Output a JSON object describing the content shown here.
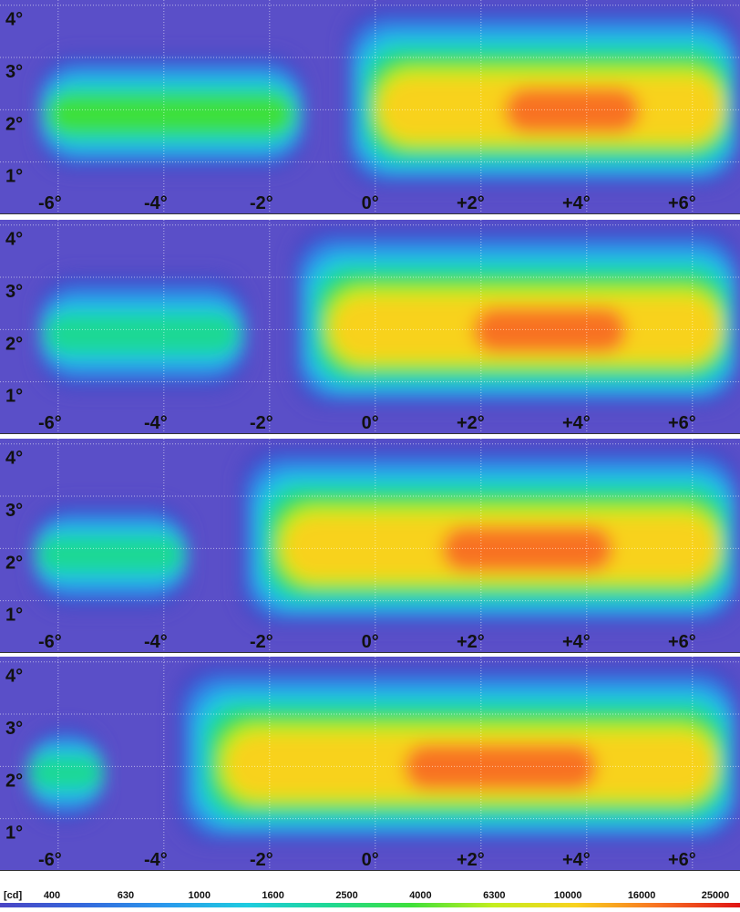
{
  "chart_data": [
    {
      "type": "heatmap",
      "xlim": [
        -7.1,
        6.9
      ],
      "ylim": [
        0,
        4.1
      ],
      "xticks": [
        {
          "value": -6,
          "label": "-6°"
        },
        {
          "value": -4,
          "label": "-4°"
        },
        {
          "value": -2,
          "label": "-2°"
        },
        {
          "value": 0,
          "label": "0°"
        },
        {
          "value": 2,
          "label": "+2°"
        },
        {
          "value": 4,
          "label": "+4°"
        },
        {
          "value": 6,
          "label": "+6°"
        }
      ],
      "yticks": [
        {
          "value": 1,
          "label": "1°"
        },
        {
          "value": 2,
          "label": "2°"
        },
        {
          "value": 3,
          "label": "3°"
        },
        {
          "value": 4,
          "label": "4°"
        }
      ],
      "beams": [
        {
          "x": [
            -6.4,
            -1.3
          ],
          "y": [
            0.8,
            3.1
          ],
          "peak": 4000
        },
        {
          "x": [
            -0.6,
            6.9
          ],
          "y": [
            0.5,
            4.0
          ],
          "peak": 16000
        }
      ]
    },
    {
      "type": "heatmap",
      "xlim": [
        -7.1,
        6.9
      ],
      "ylim": [
        0,
        4.1
      ],
      "xticks": [
        {
          "value": -6,
          "label": "-6°"
        },
        {
          "value": -4,
          "label": "-4°"
        },
        {
          "value": -2,
          "label": "-2°"
        },
        {
          "value": 0,
          "label": "0°"
        },
        {
          "value": 2,
          "label": "+2°"
        },
        {
          "value": 4,
          "label": "+4°"
        },
        {
          "value": 6,
          "label": "+6°"
        }
      ],
      "yticks": [
        {
          "value": 1,
          "label": "1°"
        },
        {
          "value": 2,
          "label": "2°"
        },
        {
          "value": 3,
          "label": "3°"
        },
        {
          "value": 4,
          "label": "4°"
        }
      ],
      "beams": [
        {
          "x": [
            -6.4,
            -2.4
          ],
          "y": [
            0.8,
            3.1
          ],
          "peak": 2500
        },
        {
          "x": [
            -1.6,
            6.9
          ],
          "y": [
            0.5,
            4.0
          ],
          "peak": 16000
        }
      ]
    },
    {
      "type": "heatmap",
      "xlim": [
        -7.1,
        6.9
      ],
      "ylim": [
        0,
        4.1
      ],
      "xticks": [
        {
          "value": -6,
          "label": "-6°"
        },
        {
          "value": -4,
          "label": "-4°"
        },
        {
          "value": -2,
          "label": "-2°"
        },
        {
          "value": 0,
          "label": "0°"
        },
        {
          "value": 2,
          "label": "+2°"
        },
        {
          "value": 4,
          "label": "+4°"
        },
        {
          "value": 6,
          "label": "+6°"
        }
      ],
      "yticks": [
        {
          "value": 1,
          "label": "1°"
        },
        {
          "value": 2,
          "label": "2°"
        },
        {
          "value": 3,
          "label": "3°"
        },
        {
          "value": 4,
          "label": "4°"
        }
      ],
      "beams": [
        {
          "x": [
            -6.5,
            -3.5
          ],
          "y": [
            0.8,
            2.9
          ],
          "peak": 2500
        },
        {
          "x": [
            -2.6,
            6.9
          ],
          "y": [
            0.5,
            4.0
          ],
          "peak": 16000
        }
      ]
    },
    {
      "type": "heatmap",
      "xlim": [
        -7.1,
        6.9
      ],
      "ylim": [
        0,
        4.1
      ],
      "xticks": [
        {
          "value": -6,
          "label": "-6°"
        },
        {
          "value": -4,
          "label": "-4°"
        },
        {
          "value": -2,
          "label": "-2°"
        },
        {
          "value": 0,
          "label": "0°"
        },
        {
          "value": 2,
          "label": "+2°"
        },
        {
          "value": 4,
          "label": "+4°"
        },
        {
          "value": 6,
          "label": "+6°"
        }
      ],
      "yticks": [
        {
          "value": 1,
          "label": "1°"
        },
        {
          "value": 2,
          "label": "2°"
        },
        {
          "value": 3,
          "label": "3°"
        },
        {
          "value": 4,
          "label": "4°"
        }
      ],
      "beams": [
        {
          "x": [
            -6.6,
            -5.1
          ],
          "y": [
            0.9,
            2.8
          ],
          "peak": 2500
        },
        {
          "x": [
            -3.8,
            6.9
          ],
          "y": [
            0.5,
            4.0
          ],
          "peak": 16000
        }
      ]
    }
  ],
  "colorbar": {
    "unit": "[cd]",
    "ticks": [
      400,
      630,
      1000,
      1600,
      2500,
      4000,
      6300,
      10000,
      16000,
      25000
    ],
    "colors": [
      "#4a45c4",
      "#3468dc",
      "#2a98ec",
      "#1ecbe0",
      "#1fd894",
      "#3ee03a",
      "#c4ee1e",
      "#f8d21e",
      "#f87222",
      "#e01414"
    ],
    "background": "#5a4fc8"
  }
}
